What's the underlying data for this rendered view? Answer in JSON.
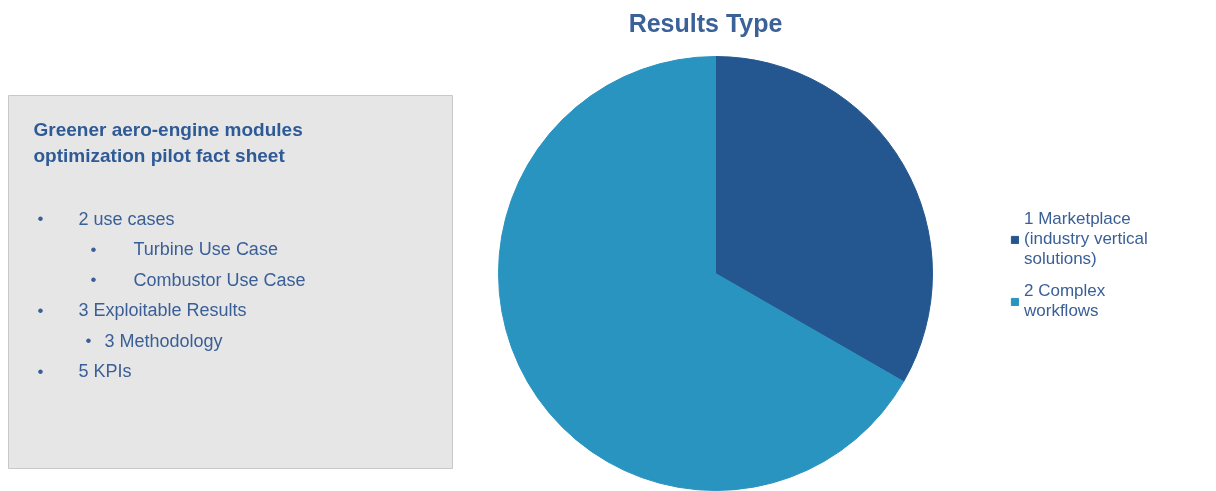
{
  "chart_data": [
    {
      "type": "other",
      "title": "Greener aero-engine modules\noptimization pilot fact sheet",
      "annotations": [
        "• 2 use cases",
        "• Turbine Use Case",
        "• Combustor Use Case",
        "• 3 Exploitable Results",
        "• 3 Methodology",
        "• 5 KPIs"
      ]
    },
    {
      "type": "pie",
      "title": "Results Type",
      "categories": [
        "1 Marketplace (industry vertical solutions)",
        "2 Complex workflows"
      ],
      "values": [
        33.3,
        66.7
      ],
      "colors": [
        "#24578f",
        "#2a94c0"
      ],
      "legend": "right"
    }
  ]
}
